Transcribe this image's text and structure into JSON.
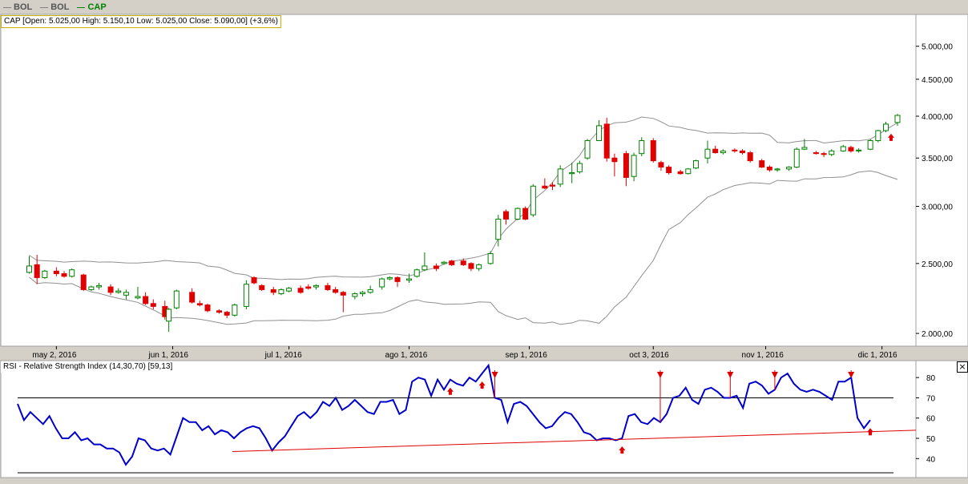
{
  "legend": [
    {
      "label": "BOL",
      "color": "#808080"
    },
    {
      "label": "BOL",
      "color": "#808080"
    },
    {
      "label": "CAP",
      "color": "#008000"
    }
  ],
  "price_info": "CAP [Open: 5.025,00  High: 5.150,10  Low: 5.025,00  Close: 5.090,00] (+3,6%)",
  "rsi_info": "RSI - Relative Strength Index (14,30,70) [59,13]",
  "close_icon": "×",
  "colors": {
    "up": "#008000",
    "down": "#e00000",
    "band": "#909090",
    "rsi": "#0000c8",
    "trend": "#e00000",
    "signal": "#e00000"
  },
  "chart_data": [
    {
      "type": "candlestick",
      "scale": "log",
      "ylim": [
        1950,
        5450
      ],
      "y_ticks": [
        "5.000,00",
        "4.500,00",
        "4.000,00",
        "3.500,00",
        "3.000,00",
        "2.500,00",
        "2.000,00"
      ],
      "y_tick_values": [
        5000,
        4500,
        4000,
        3500,
        3000,
        2500,
        2000
      ],
      "x_ticks": [
        "may 2, 2016",
        "jun 1, 2016",
        "jul 1, 2016",
        "ago 1, 2016",
        "sep 1, 2016",
        "oct 3, 2016",
        "nov 1, 2016",
        "dic 1, 2016"
      ],
      "x_tick_dates": [
        "2016-05-02",
        "2016-06-01",
        "2016-07-01",
        "2016-08-01",
        "2016-09-01",
        "2016-10-03",
        "2016-11-01",
        "2016-12-01"
      ],
      "x_range": [
        "2016-04-22",
        "2016-12-05"
      ],
      "candles": [
        {
          "date": "2016-04-25",
          "o": 2430,
          "h": 2560,
          "l": 2420,
          "c": 2480
        },
        {
          "date": "2016-04-27",
          "o": 2490,
          "h": 2570,
          "l": 2340,
          "c": 2390
        },
        {
          "date": "2016-04-29",
          "o": 2390,
          "h": 2450,
          "l": 2380,
          "c": 2440
        },
        {
          "date": "2016-05-02",
          "o": 2440,
          "h": 2470,
          "l": 2400,
          "c": 2420
        },
        {
          "date": "2016-05-04",
          "o": 2420,
          "h": 2440,
          "l": 2390,
          "c": 2400
        },
        {
          "date": "2016-05-06",
          "o": 2400,
          "h": 2460,
          "l": 2390,
          "c": 2450
        },
        {
          "date": "2016-05-09",
          "o": 2410,
          "h": 2420,
          "l": 2290,
          "c": 2300
        },
        {
          "date": "2016-05-11",
          "o": 2300,
          "h": 2330,
          "l": 2290,
          "c": 2320
        },
        {
          "date": "2016-05-13",
          "o": 2320,
          "h": 2350,
          "l": 2300,
          "c": 2330
        },
        {
          "date": "2016-05-16",
          "o": 2320,
          "h": 2340,
          "l": 2260,
          "c": 2280
        },
        {
          "date": "2016-05-18",
          "o": 2280,
          "h": 2310,
          "l": 2270,
          "c": 2290
        },
        {
          "date": "2016-05-20",
          "o": 2260,
          "h": 2300,
          "l": 2230,
          "c": 2280
        },
        {
          "date": "2016-05-23",
          "o": 2240,
          "h": 2320,
          "l": 2230,
          "c": 2250
        },
        {
          "date": "2016-05-25",
          "o": 2250,
          "h": 2280,
          "l": 2190,
          "c": 2200
        },
        {
          "date": "2016-05-27",
          "o": 2200,
          "h": 2230,
          "l": 2160,
          "c": 2180
        },
        {
          "date": "2016-05-30",
          "o": 2180,
          "h": 2220,
          "l": 2090,
          "c": 2110
        },
        {
          "date": "2016-05-31",
          "o": 2080,
          "h": 2170,
          "l": 2010,
          "c": 2160
        },
        {
          "date": "2016-06-02",
          "o": 2170,
          "h": 2300,
          "l": 2160,
          "c": 2290
        },
        {
          "date": "2016-06-06",
          "o": 2280,
          "h": 2310,
          "l": 2200,
          "c": 2210
        },
        {
          "date": "2016-06-08",
          "o": 2200,
          "h": 2220,
          "l": 2180,
          "c": 2190
        },
        {
          "date": "2016-06-10",
          "o": 2190,
          "h": 2200,
          "l": 2140,
          "c": 2150
        },
        {
          "date": "2016-06-13",
          "o": 2150,
          "h": 2160,
          "l": 2130,
          "c": 2140
        },
        {
          "date": "2016-06-15",
          "o": 2140,
          "h": 2150,
          "l": 2100,
          "c": 2120
        },
        {
          "date": "2016-06-17",
          "o": 2120,
          "h": 2200,
          "l": 2110,
          "c": 2190
        },
        {
          "date": "2016-06-20",
          "o": 2180,
          "h": 2370,
          "l": 2160,
          "c": 2340
        },
        {
          "date": "2016-06-22",
          "o": 2390,
          "h": 2400,
          "l": 2340,
          "c": 2350
        },
        {
          "date": "2016-06-24",
          "o": 2330,
          "h": 2340,
          "l": 2290,
          "c": 2300
        },
        {
          "date": "2016-06-27",
          "o": 2300,
          "h": 2320,
          "l": 2260,
          "c": 2280
        },
        {
          "date": "2016-06-29",
          "o": 2270,
          "h": 2310,
          "l": 2260,
          "c": 2300
        },
        {
          "date": "2016-07-01",
          "o": 2290,
          "h": 2320,
          "l": 2280,
          "c": 2310
        },
        {
          "date": "2016-07-04",
          "o": 2310,
          "h": 2330,
          "l": 2270,
          "c": 2280
        },
        {
          "date": "2016-07-06",
          "o": 2320,
          "h": 2340,
          "l": 2300,
          "c": 2310
        },
        {
          "date": "2016-07-08",
          "o": 2320,
          "h": 2340,
          "l": 2300,
          "c": 2330
        },
        {
          "date": "2016-07-11",
          "o": 2330,
          "h": 2350,
          "l": 2290,
          "c": 2300
        },
        {
          "date": "2016-07-13",
          "o": 2300,
          "h": 2320,
          "l": 2270,
          "c": 2280
        },
        {
          "date": "2016-07-15",
          "o": 2280,
          "h": 2290,
          "l": 2140,
          "c": 2260
        },
        {
          "date": "2016-07-18",
          "o": 2250,
          "h": 2280,
          "l": 2230,
          "c": 2270
        },
        {
          "date": "2016-07-20",
          "o": 2270,
          "h": 2290,
          "l": 2250,
          "c": 2280
        },
        {
          "date": "2016-07-22",
          "o": 2280,
          "h": 2330,
          "l": 2270,
          "c": 2300
        },
        {
          "date": "2016-07-25",
          "o": 2320,
          "h": 2390,
          "l": 2300,
          "c": 2380
        },
        {
          "date": "2016-07-27",
          "o": 2380,
          "h": 2400,
          "l": 2370,
          "c": 2390
        },
        {
          "date": "2016-07-29",
          "o": 2390,
          "h": 2400,
          "l": 2320,
          "c": 2360
        },
        {
          "date": "2016-08-01",
          "o": 2370,
          "h": 2420,
          "l": 2350,
          "c": 2380
        },
        {
          "date": "2016-08-03",
          "o": 2400,
          "h": 2460,
          "l": 2390,
          "c": 2450
        },
        {
          "date": "2016-08-05",
          "o": 2450,
          "h": 2590,
          "l": 2440,
          "c": 2480
        },
        {
          "date": "2016-08-08",
          "o": 2480,
          "h": 2500,
          "l": 2440,
          "c": 2460
        },
        {
          "date": "2016-08-10",
          "o": 2500,
          "h": 2520,
          "l": 2490,
          "c": 2510
        },
        {
          "date": "2016-08-12",
          "o": 2520,
          "h": 2530,
          "l": 2480,
          "c": 2490
        },
        {
          "date": "2016-08-15",
          "o": 2520,
          "h": 2540,
          "l": 2480,
          "c": 2490
        },
        {
          "date": "2016-08-17",
          "o": 2500,
          "h": 2510,
          "l": 2440,
          "c": 2460
        },
        {
          "date": "2016-08-19",
          "o": 2460,
          "h": 2500,
          "l": 2440,
          "c": 2490
        },
        {
          "date": "2016-08-22",
          "o": 2500,
          "h": 2600,
          "l": 2490,
          "c": 2580
        },
        {
          "date": "2016-08-24",
          "o": 2700,
          "h": 2920,
          "l": 2640,
          "c": 2880
        },
        {
          "date": "2016-08-26",
          "o": 2950,
          "h": 2970,
          "l": 2830,
          "c": 2880
        },
        {
          "date": "2016-08-29",
          "o": 2880,
          "h": 2990,
          "l": 2870,
          "c": 2980
        },
        {
          "date": "2016-08-31",
          "o": 2980,
          "h": 3000,
          "l": 2870,
          "c": 2880
        },
        {
          "date": "2016-09-02",
          "o": 2920,
          "h": 3220,
          "l": 2900,
          "c": 3200
        },
        {
          "date": "2016-09-05",
          "o": 3200,
          "h": 3280,
          "l": 3170,
          "c": 3180
        },
        {
          "date": "2016-09-07",
          "o": 3210,
          "h": 3240,
          "l": 3160,
          "c": 3200
        },
        {
          "date": "2016-09-09",
          "o": 3220,
          "h": 3420,
          "l": 3190,
          "c": 3380
        },
        {
          "date": "2016-09-12",
          "o": 3330,
          "h": 3450,
          "l": 3230,
          "c": 3340
        },
        {
          "date": "2016-09-14",
          "o": 3350,
          "h": 3470,
          "l": 3330,
          "c": 3440
        },
        {
          "date": "2016-09-16",
          "o": 3500,
          "h": 3720,
          "l": 3480,
          "c": 3700
        },
        {
          "date": "2016-09-19",
          "o": 3700,
          "h": 3950,
          "l": 3700,
          "c": 3880
        },
        {
          "date": "2016-09-21",
          "o": 3900,
          "h": 3980,
          "l": 3460,
          "c": 3500
        },
        {
          "date": "2016-09-23",
          "o": 3500,
          "h": 3550,
          "l": 3300,
          "c": 3460
        },
        {
          "date": "2016-09-26",
          "o": 3550,
          "h": 3580,
          "l": 3200,
          "c": 3290
        },
        {
          "date": "2016-09-28",
          "o": 3300,
          "h": 3560,
          "l": 3250,
          "c": 3530
        },
        {
          "date": "2016-09-30",
          "o": 3550,
          "h": 3740,
          "l": 3520,
          "c": 3700
        },
        {
          "date": "2016-10-03",
          "o": 3700,
          "h": 3730,
          "l": 3450,
          "c": 3470
        },
        {
          "date": "2016-10-05",
          "o": 3450,
          "h": 3470,
          "l": 3360,
          "c": 3400
        },
        {
          "date": "2016-10-07",
          "o": 3400,
          "h": 3420,
          "l": 3320,
          "c": 3340
        },
        {
          "date": "2016-10-10",
          "o": 3350,
          "h": 3370,
          "l": 3320,
          "c": 3330
        },
        {
          "date": "2016-10-12",
          "o": 3330,
          "h": 3390,
          "l": 3320,
          "c": 3380
        },
        {
          "date": "2016-10-14",
          "o": 3390,
          "h": 3480,
          "l": 3380,
          "c": 3470
        },
        {
          "date": "2016-10-17",
          "o": 3500,
          "h": 3700,
          "l": 3440,
          "c": 3600
        },
        {
          "date": "2016-10-19",
          "o": 3600,
          "h": 3640,
          "l": 3550,
          "c": 3560
        },
        {
          "date": "2016-10-21",
          "o": 3560,
          "h": 3600,
          "l": 3540,
          "c": 3580
        },
        {
          "date": "2016-10-24",
          "o": 3590,
          "h": 3610,
          "l": 3560,
          "c": 3580
        },
        {
          "date": "2016-10-26",
          "o": 3580,
          "h": 3600,
          "l": 3540,
          "c": 3560
        },
        {
          "date": "2016-10-28",
          "o": 3560,
          "h": 3580,
          "l": 3450,
          "c": 3470
        },
        {
          "date": "2016-10-31",
          "o": 3470,
          "h": 3490,
          "l": 3390,
          "c": 3400
        },
        {
          "date": "2016-11-02",
          "o": 3400,
          "h": 3420,
          "l": 3350,
          "c": 3370
        },
        {
          "date": "2016-11-04",
          "o": 3370,
          "h": 3390,
          "l": 3350,
          "c": 3380
        },
        {
          "date": "2016-11-07",
          "o": 3380,
          "h": 3410,
          "l": 3360,
          "c": 3400
        },
        {
          "date": "2016-11-09",
          "o": 3400,
          "h": 3620,
          "l": 3390,
          "c": 3600
        },
        {
          "date": "2016-11-11",
          "o": 3600,
          "h": 3720,
          "l": 3590,
          "c": 3620
        },
        {
          "date": "2016-11-14",
          "o": 3560,
          "h": 3580,
          "l": 3540,
          "c": 3550
        },
        {
          "date": "2016-11-16",
          "o": 3550,
          "h": 3570,
          "l": 3510,
          "c": 3540
        },
        {
          "date": "2016-11-18",
          "o": 3540,
          "h": 3600,
          "l": 3520,
          "c": 3580
        },
        {
          "date": "2016-11-21",
          "o": 3580,
          "h": 3650,
          "l": 3570,
          "c": 3630
        },
        {
          "date": "2016-11-23",
          "o": 3620,
          "h": 3640,
          "l": 3560,
          "c": 3580
        },
        {
          "date": "2016-11-25",
          "o": 3580,
          "h": 3610,
          "l": 3560,
          "c": 3590
        },
        {
          "date": "2016-11-28",
          "o": 3600,
          "h": 3720,
          "l": 3590,
          "c": 3700
        },
        {
          "date": "2016-11-30",
          "o": 3700,
          "h": 3830,
          "l": 3680,
          "c": 3820
        },
        {
          "date": "2016-12-02",
          "o": 3820,
          "h": 3930,
          "l": 3800,
          "c": 3900
        },
        {
          "date": "2016-12-05",
          "o": 3920,
          "h": 4030,
          "l": 3880,
          "c": 4010
        }
      ]
    },
    {
      "type": "line",
      "title": "RSI - Relative Strength Index (14,30,70) [59,13]",
      "ylim": [
        33,
        86
      ],
      "y_ticks": [
        "80",
        "70",
        "60",
        "50",
        "40"
      ],
      "y_tick_values": [
        80,
        70,
        60,
        50,
        40
      ],
      "horizontal_lines": [
        70,
        30
      ],
      "series": [
        {
          "name": "RSI",
          "values": [
            67,
            59,
            63,
            60,
            57,
            61,
            55,
            50,
            50,
            53,
            49,
            50,
            47,
            47,
            45,
            45,
            43,
            37,
            41,
            50,
            49,
            45,
            44,
            45,
            42,
            51,
            60,
            58,
            58,
            54,
            56,
            52,
            54,
            53,
            50,
            53,
            55,
            56,
            55,
            50,
            44,
            48,
            51,
            56,
            61,
            63,
            60,
            63,
            68,
            66,
            70,
            64,
            66,
            69,
            66,
            63,
            62,
            68,
            68,
            69,
            62,
            64,
            78,
            80,
            79,
            71,
            79,
            74,
            79,
            77,
            76,
            80,
            78,
            82,
            86,
            70,
            69,
            58,
            67,
            68,
            66,
            62,
            58,
            55,
            56,
            60,
            63,
            62,
            58,
            53,
            52,
            49,
            50,
            50,
            49,
            50,
            61,
            62,
            58,
            57,
            60,
            58,
            62,
            70,
            71,
            75,
            69,
            67,
            74,
            75,
            73,
            70,
            70,
            71,
            65,
            77,
            78,
            76,
            72,
            74,
            80,
            82,
            77,
            74,
            73,
            74,
            73,
            71,
            69,
            78,
            78,
            80,
            60,
            55,
            59
          ]
        }
      ],
      "trendline": {
        "from_index": 54,
        "from_value": 43.5,
        "to_index": 134,
        "to_value": 54
      },
      "signals": [
        {
          "type": "buy",
          "index": 68
        },
        {
          "type": "buy",
          "index": 73
        },
        {
          "type": "sell",
          "index": 75
        },
        {
          "type": "sell",
          "index": 101
        },
        {
          "type": "sell",
          "index": 112
        },
        {
          "type": "sell",
          "index": 119
        },
        {
          "type": "buy",
          "index": 95
        },
        {
          "type": "sell",
          "index": 131
        },
        {
          "type": "buy",
          "index": 134
        }
      ]
    }
  ]
}
